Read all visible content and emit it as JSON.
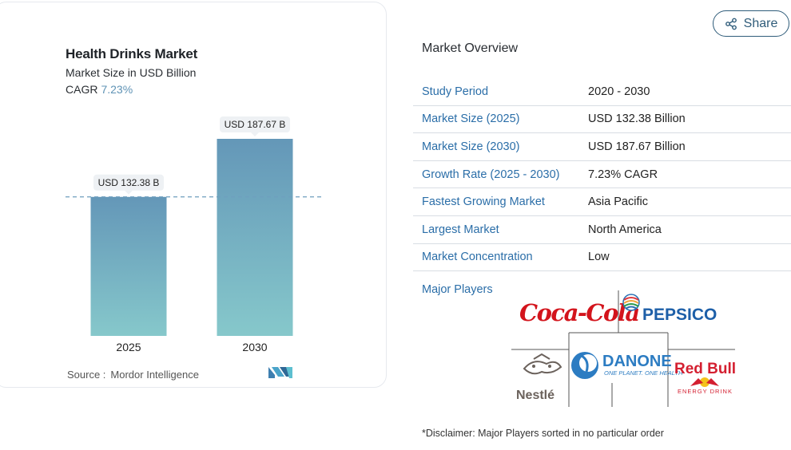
{
  "chart_data": {
    "type": "bar",
    "title": "Health Drinks Market",
    "subtitle": "Market Size in USD Billion",
    "cagr_label": "CAGR",
    "cagr_value": "7.23%",
    "categories": [
      "2025",
      "2030"
    ],
    "values": [
      132.38,
      187.67
    ],
    "data_labels": [
      "USD 132.38 B",
      "USD 187.67 B"
    ],
    "colors": {
      "bar_top": "#6497b8",
      "bar_bottom": "#86c8cb",
      "reference_line": "#6f9fbf",
      "label_bg": "#eef1f4"
    },
    "grid": false,
    "reference_line_at": 132.38,
    "source_label": "Source :",
    "source": "Mordor Intelligence"
  },
  "share": {
    "label": "Share",
    "icon": "share-icon"
  },
  "overview": {
    "title": "Market Overview",
    "rows": [
      {
        "label": "Study Period",
        "value": "2020 - 2030"
      },
      {
        "label": "Market Size (2025)",
        "value": "USD 132.38 Billion"
      },
      {
        "label": "Market Size (2030)",
        "value": "USD 187.67 Billion"
      },
      {
        "label": "Growth Rate (2025 - 2030)",
        "value": "7.23% CAGR"
      },
      {
        "label": "Fastest Growing Market",
        "value": "Asia Pacific"
      },
      {
        "label": "Largest Market",
        "value": "North America"
      },
      {
        "label": "Market Concentration",
        "value": "Low"
      }
    ],
    "major_players_label": "Major Players",
    "players": [
      "Coca-Cola",
      "PepsiCo",
      "Nestle",
      "Danone",
      "Red Bull"
    ],
    "disclaimer": "*Disclaimer: Major Players sorted in no particular order"
  }
}
